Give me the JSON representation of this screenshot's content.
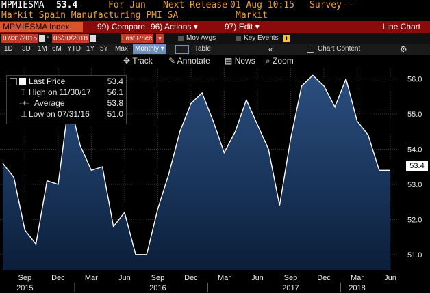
{
  "header": {
    "ticker": "MPMIESMA",
    "last": "53.4",
    "for_label": "For Jun",
    "next_release_label": "Next Release",
    "next_release_date": "01 Aug 10:15",
    "survey_label": "Survey",
    "survey_value": "--",
    "name": "Markit Spain Manufacturing PMI SA",
    "source": "Markit"
  },
  "toolbar": {
    "index_label": "MPMIESMA Index",
    "compare_num": "99",
    "compare_label": "Compare",
    "actions_num": "96",
    "actions_label": "Actions",
    "edit_num": "97",
    "edit_label": "Edit",
    "chart_type": "Line Chart"
  },
  "toolbar2": {
    "start_date": "07/31/2015",
    "end_date": "06/30/2018",
    "field": "Last Price",
    "mov_avgs": "Mov Avgs",
    "key_events": "Key Events"
  },
  "toolbar3": {
    "ranges": [
      "1D",
      "3D",
      "1M",
      "6M",
      "YTD",
      "1Y",
      "5Y",
      "Max"
    ],
    "period": "Monthly",
    "table": "Table",
    "chart_content": "Chart Content"
  },
  "tools": {
    "track": "Track",
    "annotate": "Annotate",
    "news": "News",
    "zoom": "Zoom"
  },
  "legend": {
    "last_price_label": "Last Price",
    "last_price_value": "53.4",
    "high_label": "High on 11/30/17",
    "high_value": "56.1",
    "average_label": "Average",
    "average_value": "53.8",
    "low_label": "Low on 07/31/16",
    "low_value": "51.0"
  },
  "last_tag": "53.4",
  "colors": {
    "line": "#ffffff",
    "fill_top": "#2b4f80",
    "fill_bottom": "#0b1e3a",
    "header_red": "#8b0a0a",
    "accent_orange": "#f39c32"
  },
  "chart_data": {
    "type": "area",
    "x": [
      "2015-07",
      "2015-08",
      "2015-09",
      "2015-10",
      "2015-11",
      "2015-12",
      "2016-01",
      "2016-02",
      "2016-03",
      "2016-04",
      "2016-05",
      "2016-06",
      "2016-07",
      "2016-08",
      "2016-09",
      "2016-10",
      "2016-11",
      "2016-12",
      "2017-01",
      "2017-02",
      "2017-03",
      "2017-04",
      "2017-05",
      "2017-06",
      "2017-07",
      "2017-08",
      "2017-09",
      "2017-10",
      "2017-11",
      "2017-12",
      "2018-01",
      "2018-02",
      "2018-03",
      "2018-04",
      "2018-05",
      "2018-06"
    ],
    "series": [
      {
        "values": [
          53.6,
          53.2,
          51.7,
          51.3,
          53.1,
          53.0,
          55.4,
          54.1,
          53.4,
          53.5,
          51.8,
          52.2,
          51.0,
          51.0,
          52.3,
          53.3,
          54.5,
          55.3,
          55.6,
          54.8,
          53.9,
          54.5,
          55.4,
          54.7,
          54.0,
          52.4,
          54.3,
          55.8,
          56.1,
          55.8,
          55.2,
          56.0,
          54.8,
          54.4,
          53.4,
          53.4
        ]
      }
    ],
    "ylim": [
      50.55,
      56.3
    ],
    "y_ticks": [
      "51.0",
      "52.0",
      "53.0",
      "54.0",
      "55.0",
      "56.0"
    ],
    "x_ticks": [
      "Sep",
      "Dec",
      "Mar",
      "Jun",
      "Sep",
      "Dec",
      "Mar",
      "Jun",
      "Sep",
      "Dec",
      "Mar",
      "Jun"
    ],
    "year_labels": [
      "2015",
      "2016",
      "2017",
      "2018"
    ],
    "grid": true
  }
}
